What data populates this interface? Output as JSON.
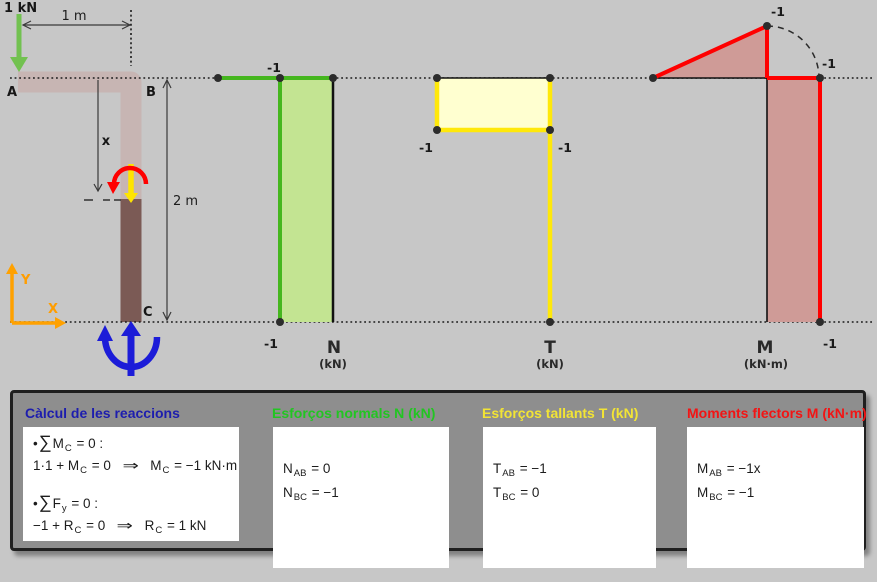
{
  "figure": {
    "load_label": "1 kN",
    "dim_ab": "1 m",
    "dim_bc": "2 m",
    "dim_cut": "x",
    "nodes": {
      "a": "A",
      "b": "B",
      "c": "C"
    },
    "axes": {
      "x": "X",
      "y": "Y"
    }
  },
  "diagrams": {
    "normal": {
      "title": "N",
      "unit": "(kN)",
      "value_top": "-1",
      "value_bottom": "-1"
    },
    "shear": {
      "title": "T",
      "unit": "(kN)",
      "value_left": "-1",
      "value_right": "-1"
    },
    "moment": {
      "title": "M",
      "unit": "(kN·m)",
      "value_apex": "-1",
      "value_corner": "-1",
      "value_bottom": "-1"
    }
  },
  "panel": {
    "reactions": {
      "title": "Càlcul de les reaccions",
      "lines": [
        [
          {
            "t": "•"
          },
          {
            "big": "∑"
          },
          {
            "t": "M"
          },
          {
            "s": "C"
          },
          {
            "t": " = 0 :"
          }
        ],
        [
          {
            "t": "1·1 + M"
          },
          {
            "s": "C"
          },
          {
            "t": " = 0"
          },
          {
            "a": "⇒"
          },
          {
            "t": "M"
          },
          {
            "s": "C"
          },
          {
            "t": " = −1 kN·m"
          }
        ],
        [
          {
            "t": "•"
          },
          {
            "big": "∑"
          },
          {
            "t": "F"
          },
          {
            "s": "y"
          },
          {
            "t": " = 0 :"
          }
        ],
        [
          {
            "t": "−1 + R"
          },
          {
            "s": "C"
          },
          {
            "t": " = 0"
          },
          {
            "a": "⇒"
          },
          {
            "t": "R"
          },
          {
            "s": "C"
          },
          {
            "t": " = 1 kN"
          }
        ]
      ]
    },
    "normal": {
      "title": "Esforços normals N (kN)",
      "lines": [
        [
          {
            "t": "N"
          },
          {
            "s": "AB"
          },
          {
            "t": " = 0"
          }
        ],
        [
          {
            "t": "N"
          },
          {
            "s": "BC"
          },
          {
            "t": " = −1"
          }
        ]
      ]
    },
    "shear": {
      "title": "Esforços tallants T (kN)",
      "lines": [
        [
          {
            "t": "T"
          },
          {
            "s": "AB"
          },
          {
            "t": " = −1"
          }
        ],
        [
          {
            "t": "T"
          },
          {
            "s": "BC"
          },
          {
            "t": " = 0"
          }
        ]
      ]
    },
    "moment": {
      "title": "Moments flectors M (kN·m)",
      "lines": [
        [
          {
            "t": "M"
          },
          {
            "s": "AB"
          },
          {
            "t": " = −1x"
          }
        ],
        [
          {
            "t": "M"
          },
          {
            "s": "BC"
          },
          {
            "t": " = −1"
          }
        ]
      ]
    }
  },
  "colors": {
    "background": "#c7c7c7",
    "panel_bg": "#8e8e8e",
    "member_light": "#c7b5b3",
    "member_dark": "#7b5a55",
    "load_green": "#72c150",
    "n_line": "#45b61e",
    "n_fill": "#c3e492",
    "t_line": "#ffe80a",
    "t_fill": "#ffffd0",
    "m_line": "#ff0000",
    "m_fill": "#cf9b97",
    "cut_yellow": "#ffe400",
    "reaction_blue": "#1c1cd8",
    "axis_orange": "#ffa100",
    "title_blue": "#1d1dae",
    "title_green": "#22c522",
    "title_yellow": "#f2e435",
    "title_red": "#f21414"
  }
}
